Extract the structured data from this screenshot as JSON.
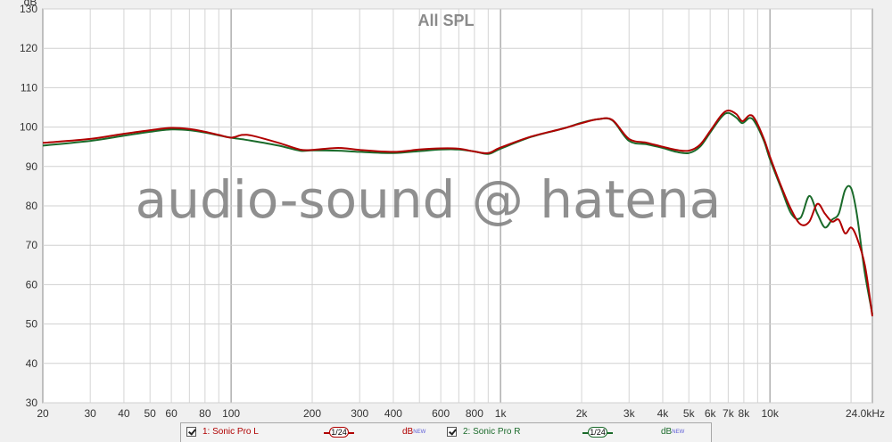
{
  "chart_data": {
    "type": "line",
    "title": "All SPL",
    "watermark": "audio-sound @ hatena",
    "ylabel": "dB",
    "xlabel": "",
    "x_scale": "log",
    "xlim": [
      20,
      24000
    ],
    "ylim": [
      30,
      130
    ],
    "y_ticks": [
      30,
      40,
      50,
      60,
      70,
      80,
      90,
      100,
      110,
      120,
      130
    ],
    "x_ticks": [
      {
        "v": 20,
        "label": "20"
      },
      {
        "v": 30,
        "label": "30"
      },
      {
        "v": 40,
        "label": "40"
      },
      {
        "v": 50,
        "label": "50"
      },
      {
        "v": 60,
        "label": "60"
      },
      {
        "v": 80,
        "label": "80"
      },
      {
        "v": 100,
        "label": "100"
      },
      {
        "v": 200,
        "label": "200"
      },
      {
        "v": 300,
        "label": "300"
      },
      {
        "v": 400,
        "label": "400"
      },
      {
        "v": 600,
        "label": "600"
      },
      {
        "v": 800,
        "label": "800"
      },
      {
        "v": 1000,
        "label": "1k"
      },
      {
        "v": 2000,
        "label": "2k"
      },
      {
        "v": 3000,
        "label": "3k"
      },
      {
        "v": 4000,
        "label": "4k"
      },
      {
        "v": 5000,
        "label": "5k"
      },
      {
        "v": 6000,
        "label": "6k"
      },
      {
        "v": 7000,
        "label": "7k"
      },
      {
        "v": 8000,
        "label": "8k"
      },
      {
        "v": 10000,
        "label": "10k"
      },
      {
        "v": 24000,
        "label": "24.0kHz"
      }
    ],
    "grid": true,
    "legend_position": "bottom",
    "series": [
      {
        "name": "1: Sonic Pro L",
        "color": "#b00000",
        "smoothing": "1/24",
        "unit": "dB",
        "points": [
          [
            20,
            96.0
          ],
          [
            30,
            97.0
          ],
          [
            40,
            98.3
          ],
          [
            50,
            99.2
          ],
          [
            60,
            99.8
          ],
          [
            70,
            99.5
          ],
          [
            80,
            98.8
          ],
          [
            90,
            98.0
          ],
          [
            100,
            97.3
          ],
          [
            110,
            98.0
          ],
          [
            120,
            97.8
          ],
          [
            150,
            96.0
          ],
          [
            180,
            94.3
          ],
          [
            200,
            94.2
          ],
          [
            250,
            94.7
          ],
          [
            300,
            94.2
          ],
          [
            400,
            93.7
          ],
          [
            500,
            94.3
          ],
          [
            600,
            94.6
          ],
          [
            700,
            94.5
          ],
          [
            800,
            93.8
          ],
          [
            900,
            93.4
          ],
          [
            1000,
            94.8
          ],
          [
            1300,
            97.6
          ],
          [
            1700,
            99.6
          ],
          [
            2000,
            101.0
          ],
          [
            2300,
            102.0
          ],
          [
            2600,
            101.8
          ],
          [
            3000,
            97.0
          ],
          [
            3500,
            96.0
          ],
          [
            4000,
            95.0
          ],
          [
            4500,
            94.2
          ],
          [
            5000,
            94.0
          ],
          [
            5500,
            95.5
          ],
          [
            6000,
            99.0
          ],
          [
            6600,
            103.0
          ],
          [
            7000,
            104.2
          ],
          [
            7500,
            103.3
          ],
          [
            7900,
            101.5
          ],
          [
            8400,
            103.0
          ],
          [
            8800,
            102.0
          ],
          [
            9500,
            97.0
          ],
          [
            10000,
            92.5
          ],
          [
            11000,
            85.0
          ],
          [
            12000,
            79.0
          ],
          [
            13000,
            75.3
          ],
          [
            14000,
            76.0
          ],
          [
            15000,
            80.5
          ],
          [
            16000,
            78.0
          ],
          [
            17000,
            76.0
          ],
          [
            18000,
            76.5
          ],
          [
            19000,
            73.0
          ],
          [
            20000,
            74.5
          ],
          [
            21000,
            72.0
          ],
          [
            22500,
            65.0
          ],
          [
            24000,
            52.0
          ]
        ]
      },
      {
        "name": "2: Sonic Pro R",
        "color": "#1a6a2a",
        "smoothing": "1/24",
        "unit": "dB",
        "points": [
          [
            20,
            95.3
          ],
          [
            30,
            96.5
          ],
          [
            40,
            97.8
          ],
          [
            50,
            98.8
          ],
          [
            60,
            99.4
          ],
          [
            70,
            99.2
          ],
          [
            80,
            98.6
          ],
          [
            90,
            97.9
          ],
          [
            100,
            97.3
          ],
          [
            110,
            96.9
          ],
          [
            120,
            96.5
          ],
          [
            150,
            95.3
          ],
          [
            180,
            94.0
          ],
          [
            200,
            94.1
          ],
          [
            250,
            94.0
          ],
          [
            300,
            93.7
          ],
          [
            400,
            93.4
          ],
          [
            500,
            93.9
          ],
          [
            600,
            94.3
          ],
          [
            700,
            94.3
          ],
          [
            800,
            93.8
          ],
          [
            900,
            93.2
          ],
          [
            1000,
            94.5
          ],
          [
            1300,
            97.5
          ],
          [
            1700,
            99.6
          ],
          [
            2000,
            101.1
          ],
          [
            2300,
            102.0
          ],
          [
            2600,
            101.7
          ],
          [
            3000,
            96.5
          ],
          [
            3500,
            95.6
          ],
          [
            4000,
            94.7
          ],
          [
            4500,
            93.7
          ],
          [
            5000,
            93.4
          ],
          [
            5500,
            95.0
          ],
          [
            6000,
            98.6
          ],
          [
            6600,
            102.5
          ],
          [
            7000,
            103.6
          ],
          [
            7500,
            102.4
          ],
          [
            7900,
            101.0
          ],
          [
            8400,
            102.3
          ],
          [
            8800,
            101.2
          ],
          [
            9500,
            96.5
          ],
          [
            10000,
            91.8
          ],
          [
            11000,
            84.5
          ],
          [
            12000,
            78.0
          ],
          [
            13000,
            77.0
          ],
          [
            14000,
            82.5
          ],
          [
            15000,
            78.0
          ],
          [
            16000,
            74.5
          ],
          [
            17000,
            76.5
          ],
          [
            18000,
            78.0
          ],
          [
            19000,
            84.0
          ],
          [
            20000,
            84.5
          ],
          [
            21000,
            78.0
          ],
          [
            22500,
            63.0
          ],
          [
            24000,
            52.5
          ]
        ]
      }
    ]
  },
  "legend": {
    "items": [
      {
        "label": "1: Sonic Pro L",
        "smoothing": "1/24",
        "unit": "dB",
        "badge": "NEW",
        "color": "#b00000"
      },
      {
        "label": "2: Sonic Pro R",
        "smoothing": "1/24",
        "unit": "dB",
        "badge": "NEW",
        "color": "#1a6a2a"
      }
    ]
  }
}
